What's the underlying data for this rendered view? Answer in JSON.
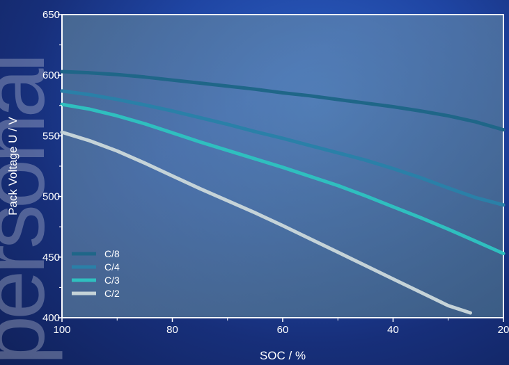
{
  "watermark": "personal",
  "chart_data": {
    "type": "line",
    "title": "",
    "xlabel": "SOC / %",
    "ylabel": "Pack Voltage U / V",
    "xlim": [
      100,
      20
    ],
    "ylim": [
      400,
      650
    ],
    "xticks": [
      100,
      80,
      60,
      40,
      20
    ],
    "yticks": [
      400,
      450,
      500,
      550,
      600,
      650
    ],
    "grid": false,
    "legend_position": "bottom-left",
    "series": [
      {
        "name": "C/8",
        "color": "#1f6688",
        "width": 5,
        "x": [
          100,
          95,
          90,
          85,
          80,
          75,
          70,
          65,
          60,
          55,
          50,
          45,
          40,
          35,
          30,
          25,
          20
        ],
        "y": [
          603,
          602,
          600.5,
          598.5,
          596,
          593.5,
          591,
          588.5,
          585.5,
          583,
          580,
          577,
          574,
          570.5,
          566.5,
          561.5,
          555
        ]
      },
      {
        "name": "C/4",
        "color": "#2a80a8",
        "width": 5,
        "x": [
          100,
          95,
          90,
          85,
          80,
          75,
          70,
          65,
          60,
          55,
          50,
          45,
          40,
          35,
          30,
          25,
          20
        ],
        "y": [
          587,
          584,
          580,
          575.5,
          570.5,
          565,
          559.5,
          553.5,
          548,
          542,
          536,
          530,
          523,
          515.5,
          507,
          499,
          493
        ]
      },
      {
        "name": "C/3",
        "color": "#2fbfbf",
        "width": 5,
        "x": [
          100,
          95,
          90,
          85,
          80,
          75,
          70,
          65,
          60,
          55,
          50,
          45,
          40,
          35,
          30,
          25,
          20
        ],
        "y": [
          576,
          572,
          566.5,
          560,
          552.5,
          545,
          538,
          531,
          524,
          516.5,
          509,
          500.5,
          491.5,
          482.5,
          473,
          463,
          453
        ]
      },
      {
        "name": "C/2",
        "color": "#c5d3d8",
        "width": 5,
        "x": [
          100,
          95,
          90,
          85,
          80,
          75,
          70,
          65,
          60,
          55,
          50,
          45,
          40,
          35,
          30,
          26
        ],
        "y": [
          553,
          546,
          537.5,
          527.5,
          517,
          506.5,
          496.5,
          486.5,
          476,
          465,
          454,
          443,
          432,
          421,
          410,
          404
        ]
      }
    ]
  }
}
